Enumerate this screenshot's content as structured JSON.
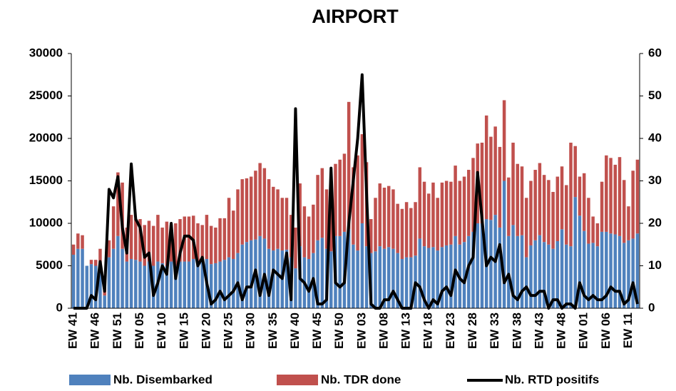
{
  "chart_data": {
    "type": "bar",
    "stacked": true,
    "title": "AIRPORT",
    "categories": [
      "EW 41",
      null,
      null,
      null,
      null,
      "EW 46",
      null,
      null,
      null,
      null,
      "EW 51",
      null,
      null,
      null,
      null,
      "EW 05",
      null,
      null,
      null,
      null,
      "EW 10",
      null,
      null,
      null,
      null,
      "EW 15",
      null,
      null,
      null,
      null,
      "EW 20",
      null,
      null,
      null,
      null,
      "EW 25",
      null,
      null,
      null,
      null,
      "EW 30",
      null,
      null,
      null,
      null,
      "EW 35",
      null,
      null,
      null,
      null,
      "EW 40",
      null,
      null,
      null,
      null,
      "EW 45",
      null,
      null,
      null,
      null,
      "EW 50",
      null,
      null,
      null,
      null,
      "EW 03",
      null,
      null,
      null,
      null,
      "EW 08",
      null,
      null,
      null,
      null,
      "EW 13",
      null,
      null,
      null,
      null,
      "EW 18",
      null,
      null,
      null,
      null,
      "EW 23",
      null,
      null,
      null,
      null,
      "EW 28",
      null,
      null,
      null,
      null,
      "EW 33",
      null,
      null,
      null,
      null,
      "EW 38",
      null,
      null,
      null,
      null,
      "EW 43",
      null,
      null,
      null,
      null,
      "EW 48",
      null,
      null,
      null,
      null,
      "EW 01",
      null,
      null,
      null,
      null,
      "EW 06",
      null,
      null,
      null,
      null,
      "EW 11",
      null,
      null
    ],
    "series": [
      {
        "name": "Nb. Disembarked",
        "type": "bar",
        "color": "#4f81bd",
        "values": [
          6300,
          7000,
          7000,
          5000,
          5200,
          5000,
          4500,
          1500,
          6000,
          7000,
          8500,
          7000,
          5500,
          5800,
          5700,
          5500,
          5000,
          5500,
          5000,
          5500,
          5300,
          5000,
          5500,
          5000,
          5500,
          5500,
          5500,
          5800,
          5500,
          5500,
          5800,
          5200,
          5300,
          5500,
          5700,
          6000,
          5800,
          6500,
          7500,
          7800,
          8000,
          8100,
          8500,
          8200,
          7000,
          6800,
          7000,
          6800,
          6900,
          6000,
          4700,
          7300,
          6000,
          5800,
          6500,
          8000,
          8300,
          7000,
          6700,
          8500,
          8500,
          9000,
          9300,
          7500,
          6800,
          10000,
          7300,
          6500,
          6700,
          7300,
          7000,
          7200,
          7000,
          6500,
          5800,
          6000,
          6000,
          6200,
          8200,
          7300,
          7100,
          7200,
          6800,
          7200,
          7400,
          7500,
          8500,
          7500,
          7800,
          8500,
          9000,
          10000,
          10000,
          10500,
          10400,
          11000,
          9500,
          15000,
          8500,
          9800,
          8500,
          8600,
          6000,
          7400,
          8000,
          8600,
          7800,
          7500,
          7000,
          7900,
          9300,
          7500,
          7300,
          13100,
          10900,
          9100,
          7600,
          7700,
          7300,
          9000,
          9000,
          8800,
          8700,
          8500,
          7700,
          8000,
          8200,
          8800
        ]
      },
      {
        "name": "Nb. TDR done",
        "type": "bar",
        "color": "#c0504d",
        "values": [
          1200,
          1800,
          1600,
          0,
          500,
          700,
          2500,
          1000,
          2000,
          5000,
          7500,
          7800,
          4000,
          5200,
          4800,
          5000,
          4800,
          4800,
          4700,
          5500,
          4200,
          5200,
          4300,
          5000,
          5000,
          5300,
          5300,
          5100,
          4500,
          4300,
          5200,
          4500,
          4200,
          5100,
          4900,
          7000,
          5700,
          7500,
          7700,
          7500,
          7500,
          8100,
          8600,
          8300,
          8200,
          7500,
          7000,
          6200,
          6100,
          5000,
          4800,
          7400,
          6000,
          5000,
          5700,
          7700,
          8200,
          7000,
          9100,
          8500,
          9000,
          9200,
          15000,
          9100,
          11200,
          10500,
          9900,
          4000,
          6300,
          7400,
          7200,
          7200,
          7000,
          5800,
          5900,
          6500,
          5800,
          6300,
          8400,
          7600,
          6400,
          7600,
          6200,
          7600,
          7600,
          7400,
          8300,
          7500,
          7700,
          7800,
          8700,
          9400,
          9500,
          12200,
          9800,
          10400,
          9500,
          9500,
          6900,
          9700,
          8500,
          8100,
          7000,
          7600,
          8300,
          8500,
          7900,
          7600,
          6700,
          7600,
          7400,
          7000,
          12200,
          6000,
          4600,
          6800,
          5400,
          3100,
          2700,
          5900,
          9000,
          8900,
          8200,
          9300,
          7400,
          4000,
          8000,
          8700
        ]
      },
      {
        "name": "Nb. RTD positifs",
        "type": "line",
        "axis": "y2",
        "color": "#000000",
        "values": [
          0,
          0,
          0,
          0,
          3,
          2,
          11,
          4,
          28,
          26,
          31,
          19,
          13,
          34,
          21,
          19,
          12,
          13,
          3,
          6,
          10,
          8,
          20,
          7,
          13,
          17,
          17,
          16,
          10,
          12,
          6,
          1,
          2,
          4,
          2,
          3,
          4,
          6,
          2,
          5,
          5,
          9,
          3,
          8,
          3,
          9,
          8,
          7,
          13,
          2,
          47,
          7,
          6,
          4,
          7,
          1,
          1,
          2,
          33,
          6,
          5,
          6,
          20,
          30,
          40,
          55,
          27,
          1,
          0,
          0,
          2,
          2,
          4,
          2,
          0,
          0,
          0,
          6,
          5,
          2,
          0,
          2,
          1,
          4,
          5,
          3,
          9,
          7,
          6,
          10,
          12,
          32,
          21,
          10,
          12,
          11,
          15,
          6,
          8,
          3,
          2,
          4,
          5,
          3,
          3,
          4,
          4,
          0,
          2,
          2,
          0,
          1,
          1,
          0,
          6,
          3,
          2,
          3,
          2,
          2,
          3,
          5,
          4,
          4,
          1,
          2,
          6,
          1
        ]
      }
    ],
    "ylim": [
      0,
      30000
    ],
    "yticks": [
      0,
      5000,
      10000,
      15000,
      20000,
      25000,
      30000
    ],
    "y2lim": [
      0,
      60
    ],
    "y2ticks": [
      0,
      10,
      20,
      30,
      40,
      50,
      60
    ],
    "grid": false
  }
}
